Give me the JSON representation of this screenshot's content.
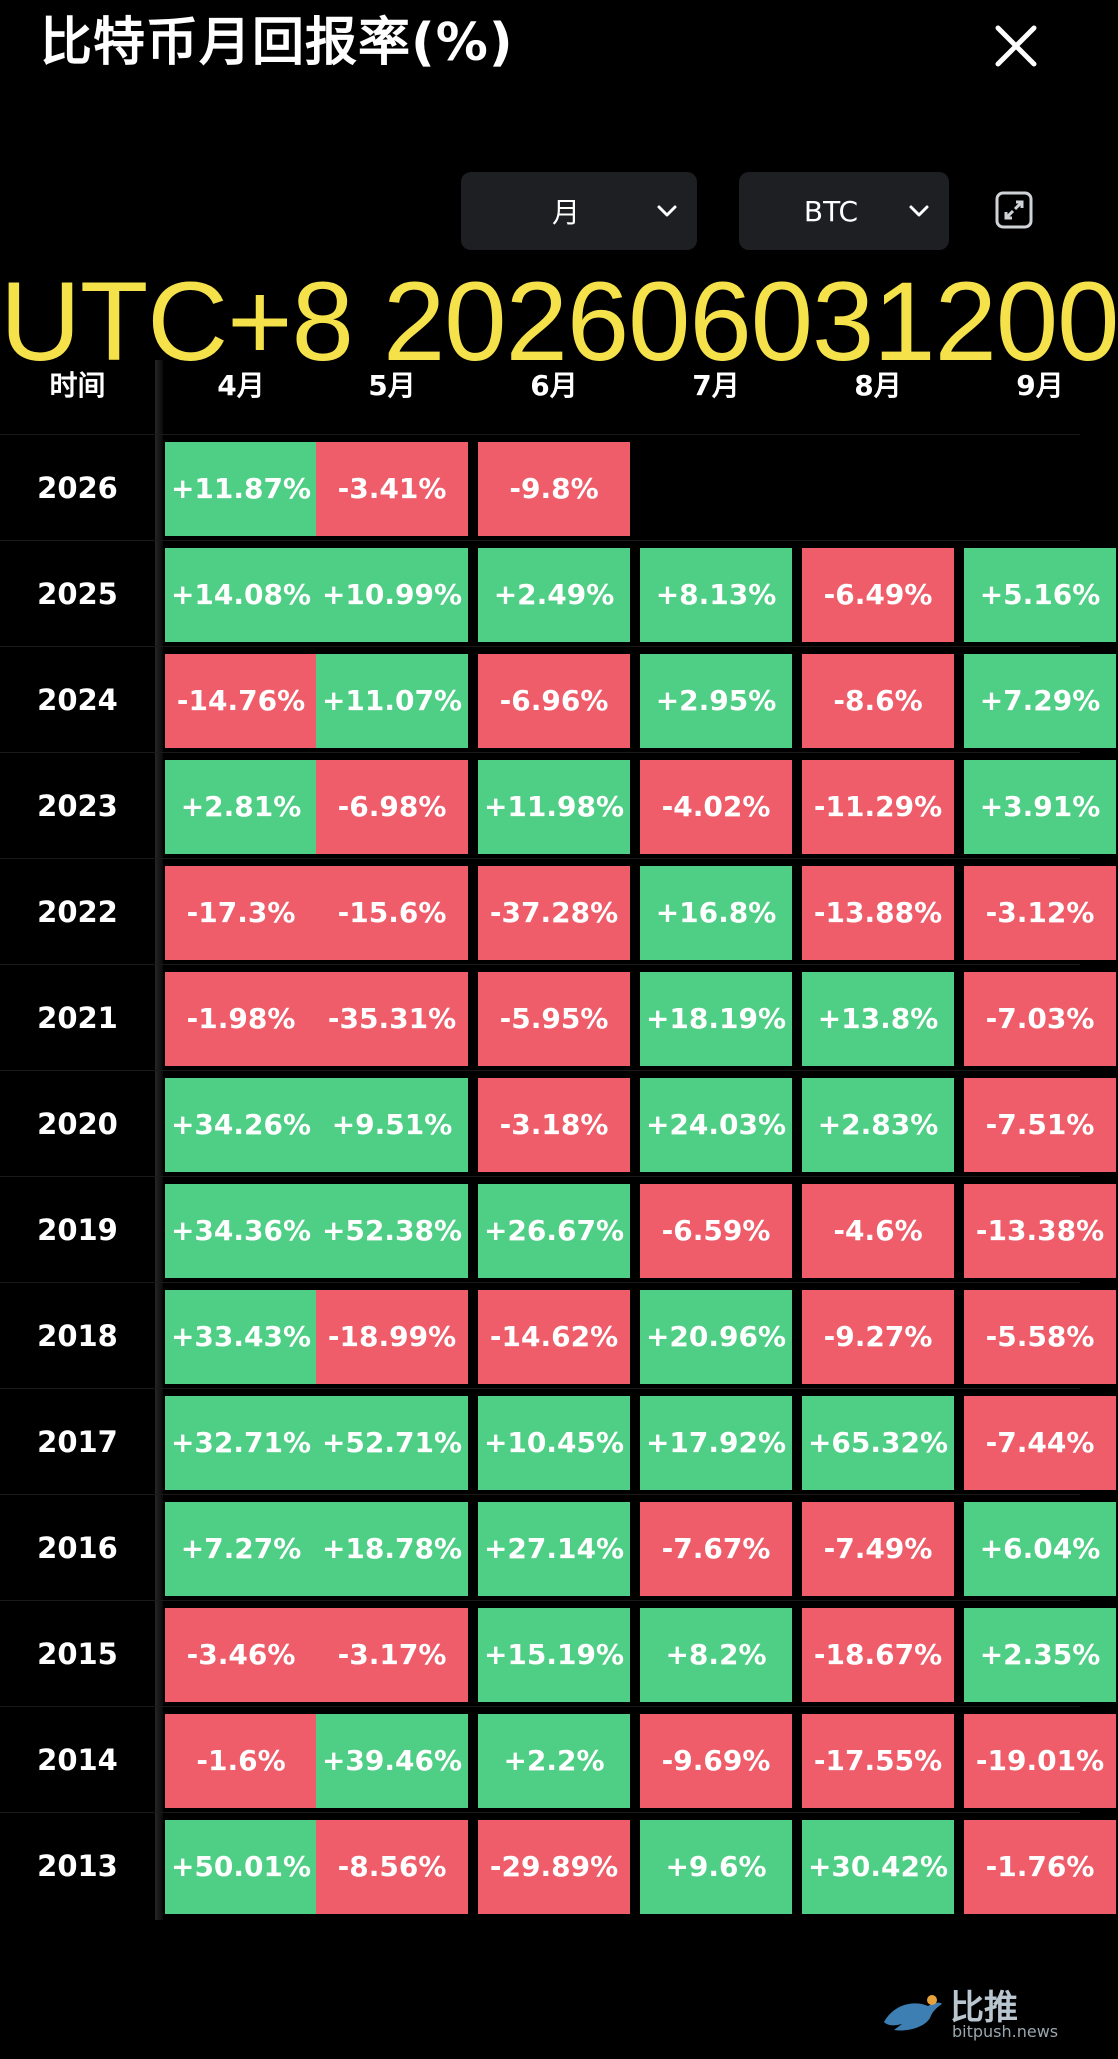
{
  "header": {
    "title": "比特币月回报率(%)"
  },
  "controls": {
    "period_select": "月",
    "coin_select": "BTC"
  },
  "overlay": {
    "timestamp_text": "UTC+8 202606031200"
  },
  "table": {
    "columns": [
      "时间",
      "4月",
      "5月",
      "6月",
      "7月",
      "8月",
      "9月"
    ],
    "rows": [
      {
        "year": "2026",
        "values": [
          "+11.87%",
          "-3.41%",
          "-9.8%",
          "",
          "",
          ""
        ]
      },
      {
        "year": "2025",
        "values": [
          "+14.08%",
          "+10.99%",
          "+2.49%",
          "+8.13%",
          "-6.49%",
          "+5.16%"
        ]
      },
      {
        "year": "2024",
        "values": [
          "-14.76%",
          "+11.07%",
          "-6.96%",
          "+2.95%",
          "-8.6%",
          "+7.29%"
        ]
      },
      {
        "year": "2023",
        "values": [
          "+2.81%",
          "-6.98%",
          "+11.98%",
          "-4.02%",
          "-11.29%",
          "+3.91%"
        ]
      },
      {
        "year": "2022",
        "values": [
          "-17.3%",
          "-15.6%",
          "-37.28%",
          "+16.8%",
          "-13.88%",
          "-3.12%"
        ]
      },
      {
        "year": "2021",
        "values": [
          "-1.98%",
          "-35.31%",
          "-5.95%",
          "+18.19%",
          "+13.8%",
          "-7.03%"
        ]
      },
      {
        "year": "2020",
        "values": [
          "+34.26%",
          "+9.51%",
          "-3.18%",
          "+24.03%",
          "+2.83%",
          "-7.51%"
        ]
      },
      {
        "year": "2019",
        "values": [
          "+34.36%",
          "+52.38%",
          "+26.67%",
          "-6.59%",
          "-4.6%",
          "-13.38%"
        ]
      },
      {
        "year": "2018",
        "values": [
          "+33.43%",
          "-18.99%",
          "-14.62%",
          "+20.96%",
          "-9.27%",
          "-5.58%"
        ]
      },
      {
        "year": "2017",
        "values": [
          "+32.71%",
          "+52.71%",
          "+10.45%",
          "+17.92%",
          "+65.32%",
          "-7.44%"
        ]
      },
      {
        "year": "2016",
        "values": [
          "+7.27%",
          "+18.78%",
          "+27.14%",
          "-7.67%",
          "-7.49%",
          "+6.04%"
        ]
      },
      {
        "year": "2015",
        "values": [
          "-3.46%",
          "-3.17%",
          "+15.19%",
          "+8.2%",
          "-18.67%",
          "+2.35%"
        ]
      },
      {
        "year": "2014",
        "values": [
          "-1.6%",
          "+39.46%",
          "+2.2%",
          "-9.69%",
          "-17.55%",
          "-19.01%"
        ]
      },
      {
        "year": "2013",
        "values": [
          "+50.01%",
          "-8.56%",
          "-29.89%",
          "+9.6%",
          "+30.42%",
          "-1.76%"
        ]
      }
    ]
  },
  "brand": {
    "name_cn": "比推",
    "site": "bitpush.news"
  },
  "colors": {
    "positive": "#4fce85",
    "negative": "#ef5d6b",
    "timestamp": "#f5e24a",
    "control_bg": "#1d1f23"
  }
}
